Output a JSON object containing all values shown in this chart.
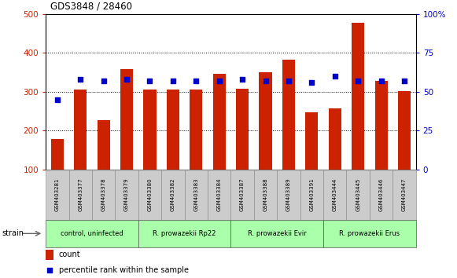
{
  "title": "GDS3848 / 28460",
  "samples": [
    "GSM403281",
    "GSM403377",
    "GSM403378",
    "GSM403379",
    "GSM403380",
    "GSM403382",
    "GSM403383",
    "GSM403384",
    "GSM403387",
    "GSM403388",
    "GSM403389",
    "GSM403391",
    "GSM403444",
    "GSM403445",
    "GSM403446",
    "GSM403447"
  ],
  "counts": [
    178,
    305,
    228,
    358,
    305,
    305,
    305,
    347,
    308,
    350,
    382,
    248,
    258,
    478,
    328,
    302
  ],
  "percentile_ranks": [
    45,
    58,
    57,
    58,
    57,
    57,
    57,
    57,
    58,
    57,
    57,
    56,
    60,
    57,
    57,
    57
  ],
  "group_bounds": [
    [
      0,
      3,
      "control, uninfected"
    ],
    [
      4,
      7,
      "R. prowazekii Rp22"
    ],
    [
      8,
      11,
      "R. prowazekii Evir"
    ],
    [
      12,
      15,
      "R. prowazekii Erus"
    ]
  ],
  "group_color": "#aaffaa",
  "bar_color": "#cc2200",
  "dot_color": "#0000cc",
  "ylim_left": [
    100,
    500
  ],
  "ylim_right": [
    0,
    100
  ],
  "yticks_left": [
    100,
    200,
    300,
    400,
    500
  ],
  "yticks_right": [
    0,
    25,
    50,
    75,
    100
  ],
  "ytick_labels_right": [
    "0",
    "25",
    "50",
    "75",
    "100%"
  ],
  "tick_label_bg": "#cccccc"
}
